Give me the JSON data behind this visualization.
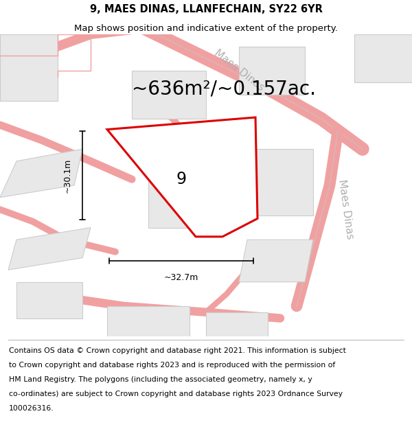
{
  "title": "9, MAES DINAS, LLANFECHAIN, SY22 6YR",
  "subtitle": "Map shows position and indicative extent of the property.",
  "area_text": "~636m²/~0.157ac.",
  "dim_horizontal": "~32.7m",
  "dim_vertical": "~30.1m",
  "property_label": "9",
  "copyright_lines": [
    "Contains OS data © Crown copyright and database right 2021. This information is subject",
    "to Crown copyright and database rights 2023 and is reproduced with the permission of",
    "HM Land Registry. The polygons (including the associated geometry, namely x, y",
    "co-ordinates) are subject to Crown copyright and database rights 2023 Ordnance Survey",
    "100026316."
  ],
  "map_bg": "#ffffff",
  "road_color": "#f0a0a0",
  "road_outline_color": "#e8c0c0",
  "building_fill": "#e8e8e8",
  "building_edge": "#cccccc",
  "property_fill": "#ffffff",
  "property_edge": "#dd0000",
  "dim_color": "#000000",
  "road_label_color": "#b0b0b0",
  "title_fontsize": 10.5,
  "subtitle_fontsize": 9.5,
  "area_fontsize": 20,
  "dim_fontsize": 9,
  "label_fontsize": 17,
  "road_label_fontsize": 11,
  "copyright_fontsize": 7.8
}
